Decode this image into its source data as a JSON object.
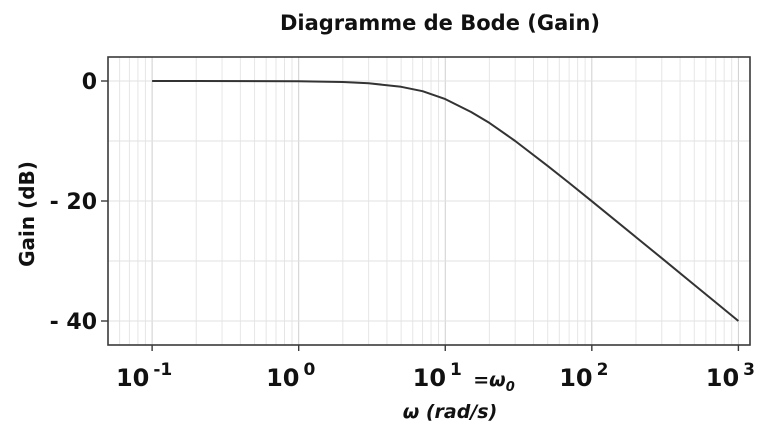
{
  "chart_data": {
    "type": "line",
    "title": "Diagramme de Bode (Gain)",
    "xlabel": "ω (rad/s)",
    "ylabel": "Gain (dB)",
    "x_scale": "log",
    "xlim": [
      0.05,
      1200
    ],
    "ylim": [
      -44,
      4
    ],
    "grid": true,
    "x_ticks": [
      {
        "value": 0.1,
        "base": "10",
        "exp": "-1"
      },
      {
        "value": 1,
        "base": "10",
        "exp": "0"
      },
      {
        "value": 10,
        "base": "10",
        "exp": "1"
      },
      {
        "value": 100,
        "base": "10",
        "exp": "2"
      },
      {
        "value": 1000,
        "base": "10",
        "exp": "3"
      }
    ],
    "y_ticks": [
      {
        "value": 0,
        "label": "0"
      },
      {
        "value": -20,
        "label": "- 20"
      },
      {
        "value": -40,
        "label": "- 40"
      }
    ],
    "annotation": {
      "x": 10,
      "text": "=ω",
      "sub": "0"
    },
    "series": [
      {
        "x": [
          0.1,
          0.2,
          0.5,
          1,
          2,
          3,
          5,
          7,
          10,
          15,
          20,
          30,
          50,
          70,
          100,
          200,
          300,
          500,
          700,
          1000
        ],
        "y": [
          0,
          0,
          -0.01,
          -0.04,
          -0.17,
          -0.37,
          -0.97,
          -1.7,
          -3.01,
          -5.16,
          -6.99,
          -10.0,
          -14.15,
          -16.99,
          -20.04,
          -26.02,
          -29.54,
          -33.98,
          -36.9,
          -40.0
        ]
      }
    ]
  }
}
